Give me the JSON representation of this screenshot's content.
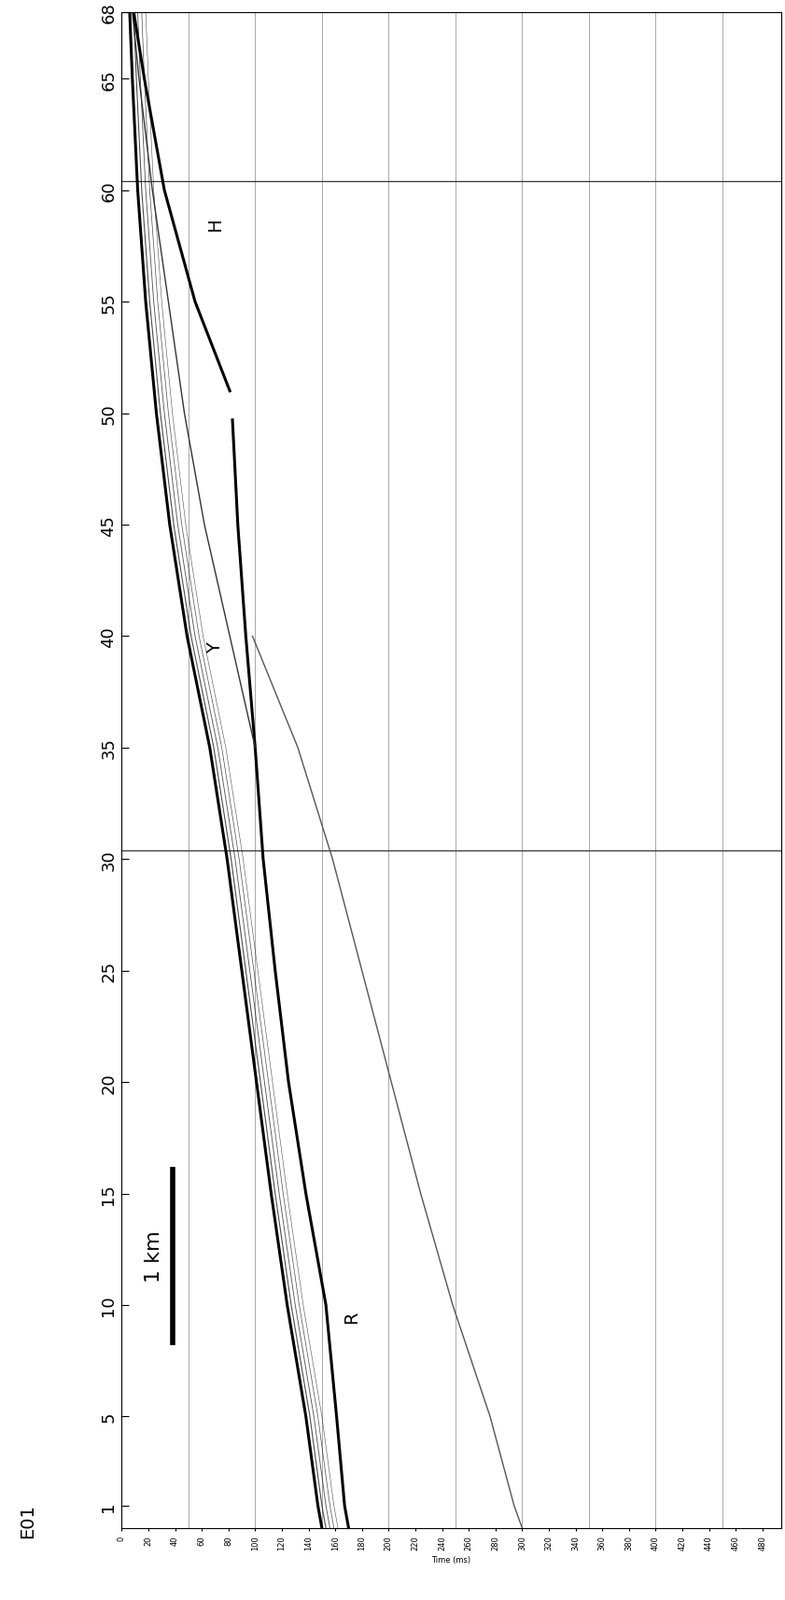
{
  "chart_data": {
    "type": "line",
    "title": "E01",
    "xlabel": "Time (ms)",
    "xlim": [
      0,
      494
    ],
    "xticks": [
      0,
      20,
      40,
      60,
      80,
      100,
      120,
      140,
      160,
      180,
      200,
      220,
      240,
      260,
      280,
      300,
      320,
      340,
      360,
      380,
      400,
      420,
      440,
      460,
      480
    ],
    "ylim": [
      0,
      68
    ],
    "yticks": [
      1,
      5,
      10,
      15,
      20,
      25,
      30,
      35,
      40,
      45,
      50,
      55,
      60,
      65,
      68
    ],
    "grid": true,
    "gridlines_ms": [
      50,
      100,
      150,
      200,
      250,
      300,
      350,
      400,
      450
    ],
    "panel_breaks": [
      30.4,
      60.4
    ],
    "series": [
      {
        "y": [
          0,
          1,
          5,
          10,
          15,
          20,
          25,
          30,
          35,
          40,
          45,
          50,
          55,
          60,
          65,
          68
        ],
        "x": [
          150,
          147,
          138,
          124,
          112,
          101,
          90,
          79,
          66,
          49,
          36,
          26,
          18,
          12,
          8,
          6
        ],
        "color": "#000000"
      },
      {
        "y": [
          0,
          1,
          5,
          10,
          15,
          20,
          25,
          30,
          35,
          40
        ],
        "x": [
          300,
          294,
          276,
          248,
          224,
          202,
          180,
          158,
          132,
          98
        ],
        "color": "#555555"
      },
      {
        "y": [
          0,
          1,
          5,
          10,
          15,
          20,
          25,
          30,
          35,
          40,
          45,
          49.7
        ],
        "x": [
          170,
          167,
          161,
          153,
          138,
          125,
          115,
          106,
          100,
          93,
          87,
          83
        ],
        "color": "#000000"
      },
      {
        "y": [
          35,
          40,
          45,
          50,
          55,
          60,
          65,
          68
        ],
        "x": [
          100,
          81,
          62,
          47,
          35,
          23,
          13,
          8
        ],
        "color": "#333333"
      },
      {
        "y": [
          51,
          55,
          60,
          65,
          68
        ],
        "x": [
          81,
          55,
          32,
          17,
          9
        ],
        "color": "#000000"
      }
    ],
    "annotations": [
      {
        "text": "H",
        "x": 70,
        "y": 58.5
      },
      {
        "text": "Y",
        "x": 70,
        "y": 39.5
      },
      {
        "text": "R",
        "x": 172,
        "y": 9.5
      }
    ],
    "scale_bar": {
      "label": "1 km",
      "x": 38,
      "y": [
        8.2,
        16.2
      ]
    }
  }
}
